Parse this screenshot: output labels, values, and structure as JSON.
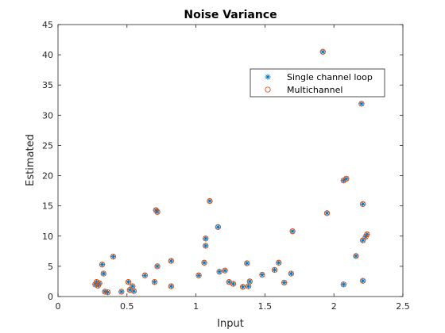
{
  "chart_data": {
    "type": "scatter",
    "title": "Noise Variance",
    "xlabel": "Input",
    "ylabel": "Estimated",
    "xlim": [
      0,
      2.5
    ],
    "ylim": [
      0,
      45
    ],
    "xticks": [
      "0",
      "0.5",
      "1",
      "1.5",
      "2",
      "2.5"
    ],
    "yticks": [
      "0",
      "5",
      "10",
      "15",
      "20",
      "25",
      "30",
      "35",
      "40",
      "45"
    ],
    "grid": false,
    "legend_position": "top-right",
    "series": [
      {
        "name": "Single channel loop",
        "marker": "asterisk",
        "color": "#0072BD",
        "points": [
          [
            0.27,
            2.0
          ],
          [
            0.28,
            2.4
          ],
          [
            0.29,
            1.8
          ],
          [
            0.3,
            2.2
          ],
          [
            0.32,
            5.3
          ],
          [
            0.33,
            3.8
          ],
          [
            0.34,
            0.8
          ],
          [
            0.36,
            0.7
          ],
          [
            0.4,
            6.6
          ],
          [
            0.46,
            0.8
          ],
          [
            0.51,
            2.4
          ],
          [
            0.52,
            1.1
          ],
          [
            0.54,
            1.7
          ],
          [
            0.55,
            0.9
          ],
          [
            0.63,
            3.5
          ],
          [
            0.7,
            2.4
          ],
          [
            0.71,
            14.3
          ],
          [
            0.72,
            14.0
          ],
          [
            0.72,
            5.0
          ],
          [
            0.82,
            5.9
          ],
          [
            0.82,
            1.7
          ],
          [
            1.02,
            3.5
          ],
          [
            1.06,
            5.6
          ],
          [
            1.07,
            9.6
          ],
          [
            1.07,
            8.4
          ],
          [
            1.1,
            15.8
          ],
          [
            1.16,
            11.5
          ],
          [
            1.17,
            4.1
          ],
          [
            1.21,
            4.3
          ],
          [
            1.24,
            2.4
          ],
          [
            1.27,
            2.1
          ],
          [
            1.34,
            1.6
          ],
          [
            1.37,
            5.5
          ],
          [
            1.38,
            1.7
          ],
          [
            1.39,
            2.5
          ],
          [
            1.48,
            3.6
          ],
          [
            1.57,
            4.4
          ],
          [
            1.6,
            5.6
          ],
          [
            1.64,
            2.3
          ],
          [
            1.69,
            3.8
          ],
          [
            1.7,
            10.8
          ],
          [
            1.92,
            40.5
          ],
          [
            1.95,
            13.8
          ],
          [
            2.07,
            2.0
          ],
          [
            2.07,
            19.2
          ],
          [
            2.09,
            19.5
          ],
          [
            2.16,
            6.7
          ],
          [
            2.2,
            31.9
          ],
          [
            2.21,
            15.3
          ],
          [
            2.21,
            2.6
          ],
          [
            2.21,
            9.3
          ],
          [
            2.23,
            9.9
          ],
          [
            2.24,
            10.3
          ]
        ]
      },
      {
        "name": "Multichannel",
        "marker": "circle",
        "color": "#D95319",
        "points": [
          [
            0.27,
            2.0
          ],
          [
            0.28,
            2.4
          ],
          [
            0.29,
            1.8
          ],
          [
            0.3,
            2.2
          ],
          [
            0.32,
            5.3
          ],
          [
            0.33,
            3.8
          ],
          [
            0.34,
            0.8
          ],
          [
            0.36,
            0.7
          ],
          [
            0.4,
            6.6
          ],
          [
            0.46,
            0.8
          ],
          [
            0.51,
            2.4
          ],
          [
            0.52,
            1.1
          ],
          [
            0.54,
            1.7
          ],
          [
            0.55,
            0.9
          ],
          [
            0.63,
            3.5
          ],
          [
            0.7,
            2.4
          ],
          [
            0.71,
            14.3
          ],
          [
            0.72,
            14.0
          ],
          [
            0.72,
            5.0
          ],
          [
            0.82,
            5.9
          ],
          [
            0.82,
            1.7
          ],
          [
            1.02,
            3.5
          ],
          [
            1.06,
            5.6
          ],
          [
            1.07,
            9.6
          ],
          [
            1.07,
            8.4
          ],
          [
            1.1,
            15.8
          ],
          [
            1.16,
            11.5
          ],
          [
            1.17,
            4.1
          ],
          [
            1.21,
            4.3
          ],
          [
            1.24,
            2.4
          ],
          [
            1.27,
            2.1
          ],
          [
            1.34,
            1.6
          ],
          [
            1.37,
            5.5
          ],
          [
            1.38,
            1.7
          ],
          [
            1.39,
            2.5
          ],
          [
            1.48,
            3.6
          ],
          [
            1.57,
            4.4
          ],
          [
            1.6,
            5.6
          ],
          [
            1.64,
            2.3
          ],
          [
            1.69,
            3.8
          ],
          [
            1.7,
            10.8
          ],
          [
            1.92,
            40.5
          ],
          [
            1.95,
            13.8
          ],
          [
            2.07,
            2.0
          ],
          [
            2.07,
            19.2
          ],
          [
            2.09,
            19.5
          ],
          [
            2.16,
            6.7
          ],
          [
            2.2,
            31.9
          ],
          [
            2.21,
            15.3
          ],
          [
            2.21,
            2.6
          ],
          [
            2.21,
            9.3
          ],
          [
            2.23,
            9.9
          ],
          [
            2.24,
            10.3
          ]
        ]
      }
    ]
  }
}
